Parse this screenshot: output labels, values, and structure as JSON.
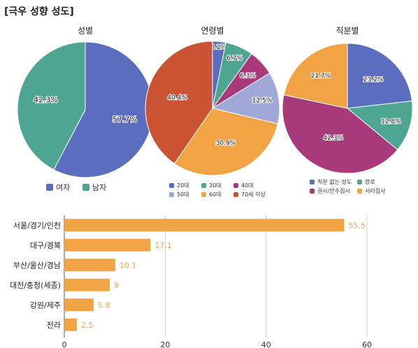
{
  "page_title": "[극우 성향 성도]",
  "colors": {
    "blue": "#5b6dbf",
    "teal": "#4ea592",
    "magenta": "#a8397a",
    "lavender": "#a0a8d8",
    "orange": "#f2a445",
    "red": "#cc5234",
    "bar": "#f2a445",
    "grid": "#d0d0d0",
    "axis": "#555555"
  },
  "chart_data": [
    {
      "type": "pie",
      "title": "성별",
      "slices": [
        {
          "label": "여자",
          "value": 57.7,
          "value_label": "57.7%",
          "color": "#5b6dbf"
        },
        {
          "label": "남자",
          "value": 42.3,
          "value_label": "42.3%",
          "color": "#4ea592"
        }
      ],
      "legend": [
        "여자",
        "남자"
      ],
      "legend_placement": "bottom"
    },
    {
      "type": "pie",
      "title": "연령별",
      "slices": [
        {
          "label": "20대",
          "value": 3.2,
          "value_label": "3.2%",
          "color": "#5b6dbf"
        },
        {
          "label": "30대",
          "value": 6.7,
          "value_label": "6.7%",
          "color": "#4ea592"
        },
        {
          "label": "40대",
          "value": 6.3,
          "value_label": "6.3%",
          "color": "#a8397a"
        },
        {
          "label": "50대",
          "value": 12.5,
          "value_label": "12.5%",
          "color": "#a0a8d8"
        },
        {
          "label": "60대",
          "value": 30.9,
          "value_label": "30.9%",
          "color": "#f2a445"
        },
        {
          "label": "70세 이상",
          "value": 40.4,
          "value_label": "40.4%",
          "color": "#cc5234"
        }
      ],
      "legend": [
        "20대",
        "30대",
        "40대",
        "50대",
        "60대",
        "70세 이상"
      ],
      "legend_placement": "bottom"
    },
    {
      "type": "pie",
      "title": "직분별",
      "slices": [
        {
          "label": "직분 없는 성도",
          "value": 23.2,
          "value_label": "23.2%",
          "color": "#5b6dbf"
        },
        {
          "label": "장로",
          "value": 12.8,
          "value_label": "12.8%",
          "color": "#4ea592"
        },
        {
          "label": "권사/안수집사",
          "value": 42.3,
          "value_label": "42.3%",
          "color": "#a8397a"
        },
        {
          "label": "서리집사",
          "value": 21.7,
          "value_label": "21.7%",
          "color": "#f2a445"
        }
      ],
      "legend": [
        "직분 없는 성도",
        "장로",
        "권사/안수집사",
        "서리집사"
      ],
      "legend_placement": "bottom"
    },
    {
      "type": "bar",
      "orientation": "horizontal",
      "categories": [
        "서울/경기/인천",
        "대구/경북",
        "부산/울산/경남",
        "대전/충청(세종)",
        "강원/제주",
        "전라"
      ],
      "values": [
        55.5,
        17.1,
        10.1,
        9,
        5.8,
        2.5
      ],
      "value_labels": [
        "55.5",
        "17.1",
        "10.1",
        "9",
        "5.8",
        "2.5"
      ],
      "xlim": [
        0,
        60
      ],
      "x_ticks": [
        0,
        20,
        40,
        60
      ],
      "grid": true,
      "color": "#f2a445"
    }
  ]
}
